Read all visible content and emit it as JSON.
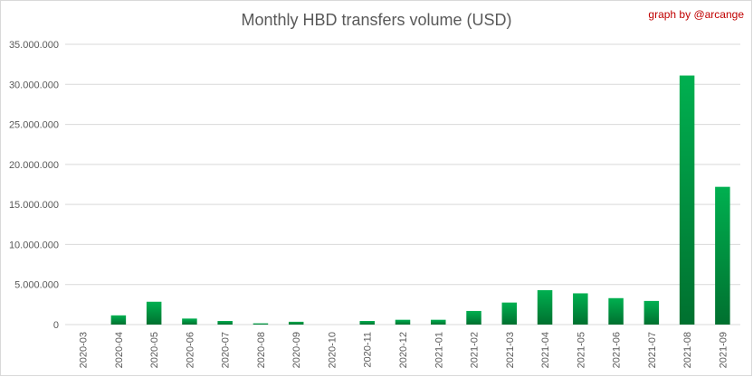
{
  "chart_data": {
    "type": "bar",
    "title": "Monthly HBD transfers volume (USD)",
    "credit": "graph by @arcange",
    "xlabel": "",
    "ylabel": "",
    "ylim": [
      0,
      35000000
    ],
    "yticks": [
      0,
      5000000,
      10000000,
      15000000,
      20000000,
      25000000,
      30000000,
      35000000
    ],
    "ytick_labels": [
      "0",
      "5.000.000",
      "10.000.000",
      "15.000.000",
      "20.000.000",
      "25.000.000",
      "30.000.000",
      "35.000.000"
    ],
    "grid": true,
    "legend": "none",
    "bar_color_top": "#00b050",
    "bar_color_bottom": "#00702f",
    "categories": [
      "2020-03",
      "2020-04",
      "2020-05",
      "2020-06",
      "2020-07",
      "2020-08",
      "2020-09",
      "2020-10",
      "2020-11",
      "2020-12",
      "2021-01",
      "2021-02",
      "2021-03",
      "2021-04",
      "2021-05",
      "2021-06",
      "2021-07",
      "2021-08",
      "2021-09"
    ],
    "values": [
      0,
      1150000,
      2850000,
      750000,
      450000,
      150000,
      350000,
      0,
      450000,
      600000,
      600000,
      1700000,
      2750000,
      4300000,
      3900000,
      3300000,
      2950000,
      31100000,
      17200000
    ]
  }
}
